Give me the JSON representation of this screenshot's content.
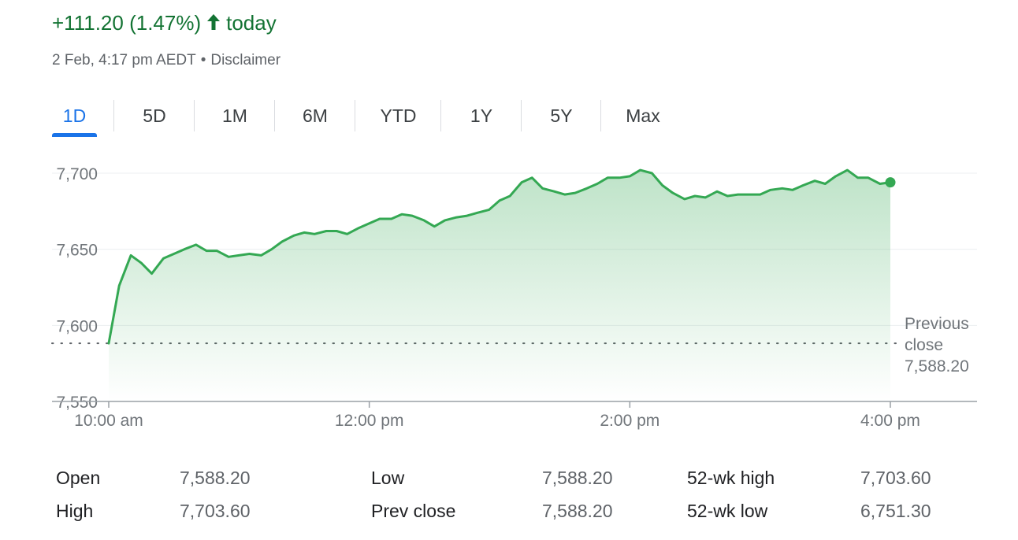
{
  "header": {
    "change": "+111.20 (1.47%)",
    "arrow_icon": "arrow-up-icon",
    "period": "today",
    "timestamp": "2 Feb, 4:17 pm AEDT",
    "separator": "•",
    "disclaimer": "Disclaimer",
    "accent_color": "#137333"
  },
  "tabs": [
    {
      "label": "1D",
      "active": true
    },
    {
      "label": "5D"
    },
    {
      "label": "1M"
    },
    {
      "label": "6M"
    },
    {
      "label": "YTD"
    },
    {
      "label": "1Y"
    },
    {
      "label": "5Y"
    },
    {
      "label": "Max"
    }
  ],
  "chart_data": {
    "type": "area",
    "line_color": "#34a853",
    "ylim": [
      7550,
      7700
    ],
    "y_ticks": [
      7700,
      7650,
      7600,
      7550
    ],
    "y_tick_labels": [
      "7,700",
      "7,650",
      "7,600",
      "7,550"
    ],
    "x_ticks": [
      10,
      12,
      14,
      16
    ],
    "x_tick_labels": [
      "10:00 am",
      "12:00 pm",
      "2:00 pm",
      "4:00 pm"
    ],
    "reference_line": {
      "value": 7588.2,
      "label_lines": [
        "Previous",
        "close",
        "7,588.20"
      ]
    },
    "grid": true,
    "series": [
      {
        "x": [
          10.0,
          10.08,
          10.17,
          10.25,
          10.33,
          10.42,
          10.5,
          10.58,
          10.67,
          10.75,
          10.83,
          10.92,
          11.0,
          11.08,
          11.17,
          11.25,
          11.33,
          11.42,
          11.5,
          11.58,
          11.67,
          11.75,
          11.83,
          11.92,
          12.0,
          12.08,
          12.17,
          12.25,
          12.33,
          12.42,
          12.5,
          12.58,
          12.67,
          12.75,
          12.83,
          12.92,
          13.0,
          13.08,
          13.17,
          13.25,
          13.33,
          13.42,
          13.5,
          13.58,
          13.67,
          13.75,
          13.83,
          13.92,
          14.0,
          14.08,
          14.17,
          14.25,
          14.33,
          14.42,
          14.5,
          14.58,
          14.67,
          14.75,
          14.83,
          14.92,
          15.0,
          15.08,
          15.17,
          15.25,
          15.33,
          15.42,
          15.5,
          15.58,
          15.67,
          15.75,
          15.83,
          15.92,
          16.0
        ],
        "y": [
          7588.2,
          7626,
          7646,
          7641,
          7634,
          7644,
          7647,
          7650,
          7653,
          7649,
          7649,
          7645,
          7646,
          7647,
          7646,
          7650,
          7655,
          7659,
          7661,
          7660,
          7662,
          7662,
          7660,
          7664,
          7667,
          7670,
          7670,
          7673,
          7672,
          7669,
          7665,
          7669,
          7671,
          7672,
          7674,
          7676,
          7682,
          7685,
          7694,
          7697,
          7690,
          7688,
          7686,
          7687,
          7690,
          7693,
          7697,
          7697,
          7698,
          7702,
          7700,
          7692,
          7687,
          7683,
          7685,
          7684,
          7688,
          7685,
          7686,
          7686,
          7686,
          7689,
          7690,
          7689,
          7692,
          7695,
          7693,
          7698,
          7702,
          7697,
          7697,
          7693,
          7694
        ]
      }
    ]
  },
  "stats": [
    {
      "label": "Open",
      "value": "7,588.20"
    },
    {
      "label": "High",
      "value": "7,703.60"
    },
    {
      "label": "Low",
      "value": "7,588.20"
    },
    {
      "label": "Prev close",
      "value": "7,588.20"
    },
    {
      "label": "52-wk high",
      "value": "7,703.60"
    },
    {
      "label": "52-wk low",
      "value": "6,751.30"
    }
  ]
}
